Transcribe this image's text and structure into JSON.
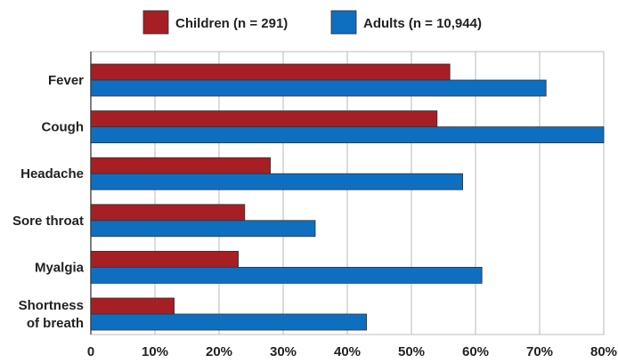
{
  "chart_data": {
    "type": "bar",
    "orientation": "horizontal",
    "categories": [
      [
        "Fever"
      ],
      [
        "Cough"
      ],
      [
        "Headache"
      ],
      [
        "Sore throat"
      ],
      [
        "Myalgia"
      ],
      [
        "Shortness",
        "of breath"
      ]
    ],
    "series": [
      {
        "name": "Children (n = 291)",
        "color": "#a51f24",
        "values": [
          56,
          54,
          28,
          24,
          23,
          13
        ]
      },
      {
        "name": "Adults (n = 10,944)",
        "color": "#0e6fc1",
        "values": [
          71,
          80,
          58,
          35,
          61,
          43
        ]
      }
    ],
    "xlim": [
      0,
      80
    ],
    "xticks": [
      "0",
      "10%",
      "20%",
      "30%",
      "40%",
      "50%",
      "60%",
      "70%",
      "80%"
    ],
    "grid": true,
    "legend_position": "top"
  }
}
